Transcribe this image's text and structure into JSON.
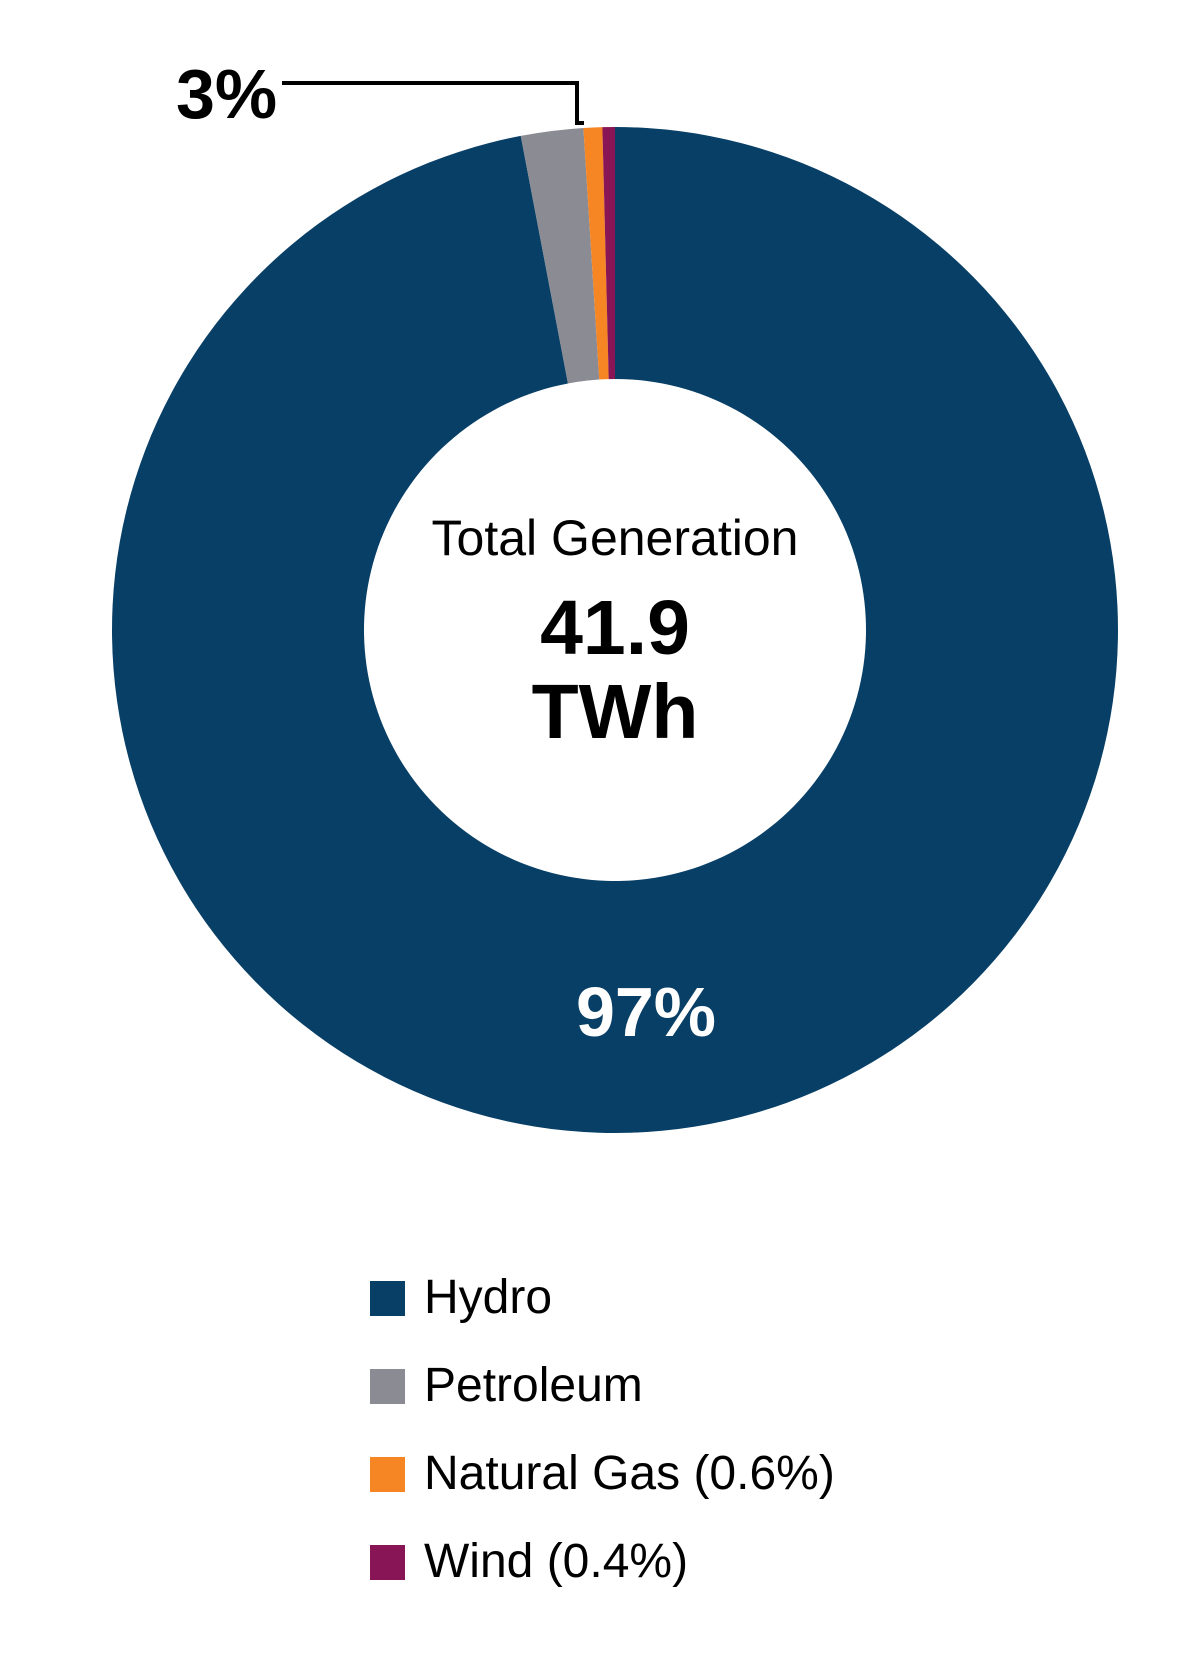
{
  "chart_data": {
    "type": "pie",
    "subtype": "donut",
    "title": "",
    "center_text": {
      "title": "Total Generation",
      "value": "41.9",
      "unit": "TWh"
    },
    "categories": [
      "Hydro",
      "Petroleum",
      "Natural Gas",
      "Wind"
    ],
    "values": [
      97.0,
      2.0,
      0.6,
      0.4
    ],
    "unit": "%",
    "colors": [
      "#083F66",
      "#8B8B93",
      "#F68523",
      "#881656"
    ],
    "start_angle_deg": 0,
    "direction": "clockwise",
    "draw_order": [
      "Hydro",
      "Petroleum",
      "Natural Gas",
      "Wind"
    ],
    "annotations": [
      {
        "text": "97%",
        "target": "Hydro",
        "position": "inside-bottom",
        "color": "#FFFFFF"
      },
      {
        "text": "3%",
        "target": "Petroleum + Natural Gas + Wind",
        "position": "outside-top-left",
        "leader_line": true
      }
    ],
    "legend": {
      "position": "bottom",
      "entries": [
        {
          "label": "Hydro",
          "color": "#083F66"
        },
        {
          "label": "Petroleum",
          "color": "#8B8B93"
        },
        {
          "label": "Natural Gas (0.6%)",
          "color": "#F68523"
        },
        {
          "label": "Wind (0.4%)",
          "color": "#881656"
        }
      ]
    }
  },
  "labels": {
    "hydro_pct": "97%",
    "others_pct": "3%"
  }
}
